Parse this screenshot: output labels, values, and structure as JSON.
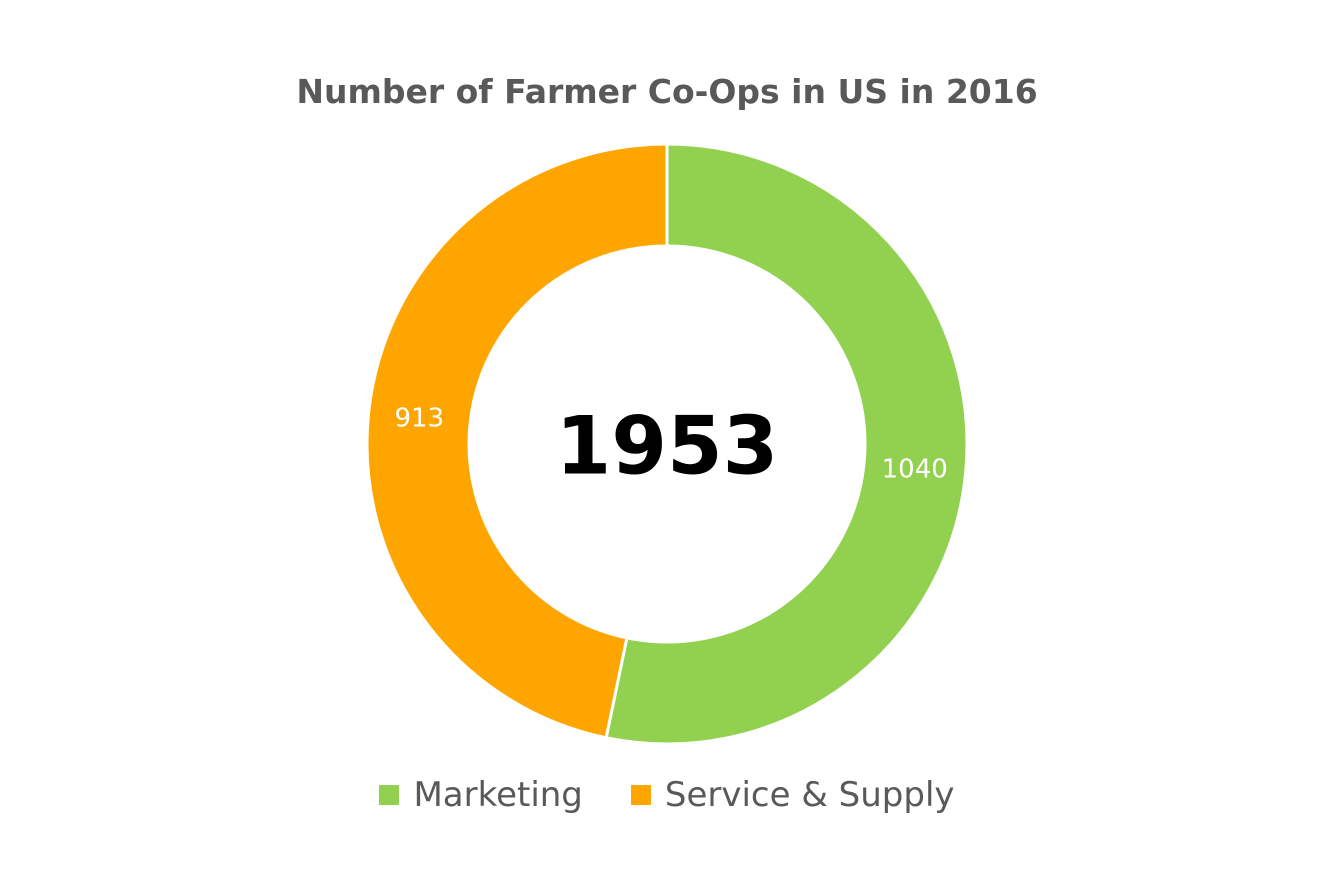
{
  "chart_data": {
    "type": "pie",
    "variant": "donut",
    "title": "Number of Farmer Co-Ops in US in 2016",
    "center_label": "1953",
    "categories": [
      "Marketing",
      "Service & Supply"
    ],
    "values": [
      1040,
      913
    ],
    "data_labels": [
      "1040",
      "913"
    ],
    "colors": [
      "#92d050",
      "#ffa500"
    ],
    "legend": {
      "position": "bottom",
      "entries": [
        "Marketing",
        "Service & Supply"
      ]
    }
  }
}
